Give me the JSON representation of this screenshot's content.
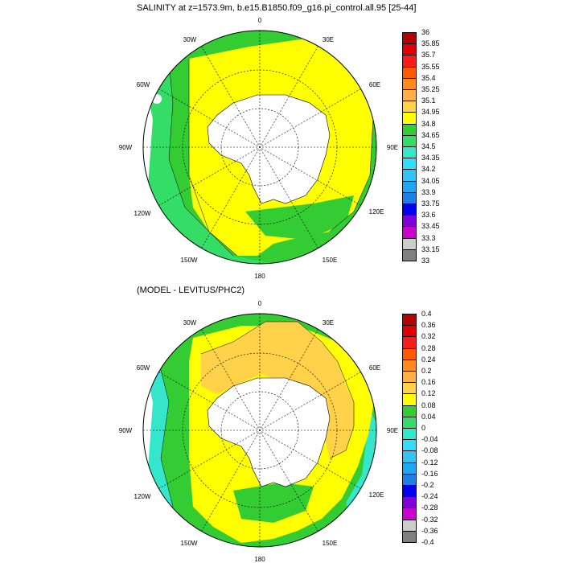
{
  "panel1": {
    "title": "SALINITY at z=1573.9m, b.e15.B1850.f09_g16.pi_control.all.95 [25-44]",
    "colorbar": {
      "labels": [
        "36",
        "35.85",
        "35.7",
        "35.55",
        "35.4",
        "35.25",
        "35.1",
        "34.95",
        "34.8",
        "34.65",
        "34.5",
        "34.35",
        "34.2",
        "34.05",
        "33.9",
        "33.75",
        "33.6",
        "33.45",
        "33.3",
        "33.15",
        "33"
      ],
      "colors": [
        "#b40000",
        "#e00000",
        "#ff1a1a",
        "#ff5a00",
        "#ff8c1a",
        "#ffb040",
        "#ffd24a",
        "#ffff00",
        "#33cc33",
        "#33dd66",
        "#33e6cc",
        "#33ddff",
        "#33c4f5",
        "#1fa8f0",
        "#1f7fe6",
        "#0000ee",
        "#7f00d9",
        "#cc00cc",
        "#cccccc",
        "#808080"
      ]
    }
  },
  "panel2": {
    "title": "(MODEL - LEVITUS/PHC2)",
    "colorbar": {
      "labels": [
        "0.4",
        "0.36",
        "0.32",
        "0.28",
        "0.24",
        "0.2",
        "0.16",
        "0.12",
        "0.08",
        "0.04",
        "0",
        "-0.04",
        "-0.08",
        "-0.12",
        "-0.16",
        "-0.2",
        "-0.24",
        "-0.28",
        "-0.32",
        "-0.36",
        "-0.4"
      ],
      "colors": [
        "#b40000",
        "#e00000",
        "#ff1a1a",
        "#ff5a00",
        "#ff8c1a",
        "#ffb040",
        "#ffd24a",
        "#ffff00",
        "#33cc33",
        "#33dd66",
        "#33e6cc",
        "#33ddff",
        "#33c4f5",
        "#1fa8f0",
        "#1f7fe6",
        "#0000ee",
        "#7f00d9",
        "#cc00cc",
        "#cccccc",
        "#808080"
      ]
    }
  },
  "longitude_labels": {
    "lon_0": "0",
    "lon_30e": "30E",
    "lon_60e": "60E",
    "lon_90e": "90E",
    "lon_120e": "120E",
    "lon_150e": "150E",
    "lon_180": "180",
    "lon_150w": "150W",
    "lon_120w": "120W",
    "lon_90w": "90W",
    "lon_60w": "60W",
    "lon_30w": "30W"
  }
}
